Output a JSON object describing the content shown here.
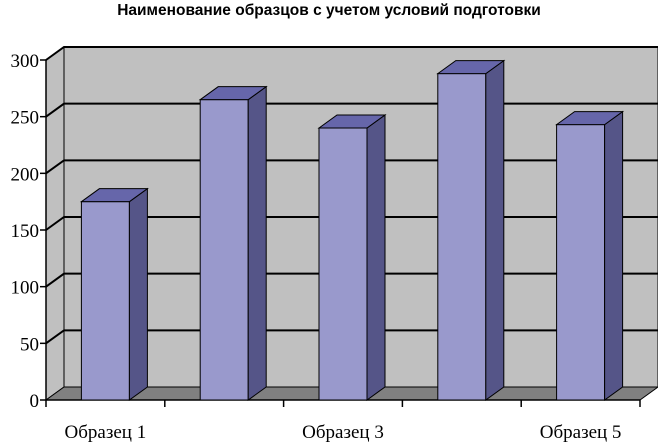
{
  "chart_data": {
    "type": "bar",
    "title": "Наименование образцов с учетом условий подготовки",
    "xlabel": "",
    "ylabel": "",
    "categories": [
      "Образец 1",
      "",
      "Образец 3",
      "",
      "Образец 5"
    ],
    "values": [
      175,
      265,
      240,
      288,
      243
    ],
    "ylim": [
      0,
      300
    ],
    "yticks": [
      0,
      50,
      100,
      150,
      200,
      250,
      300
    ],
    "grid": true,
    "legend": "none",
    "colors": {
      "bar_front": "#9999cc",
      "bar_side": "#555588",
      "bar_top": "#6666aa",
      "back_wall": "#c0c0c0",
      "floor": "#808080",
      "gridline": "#000000"
    }
  }
}
